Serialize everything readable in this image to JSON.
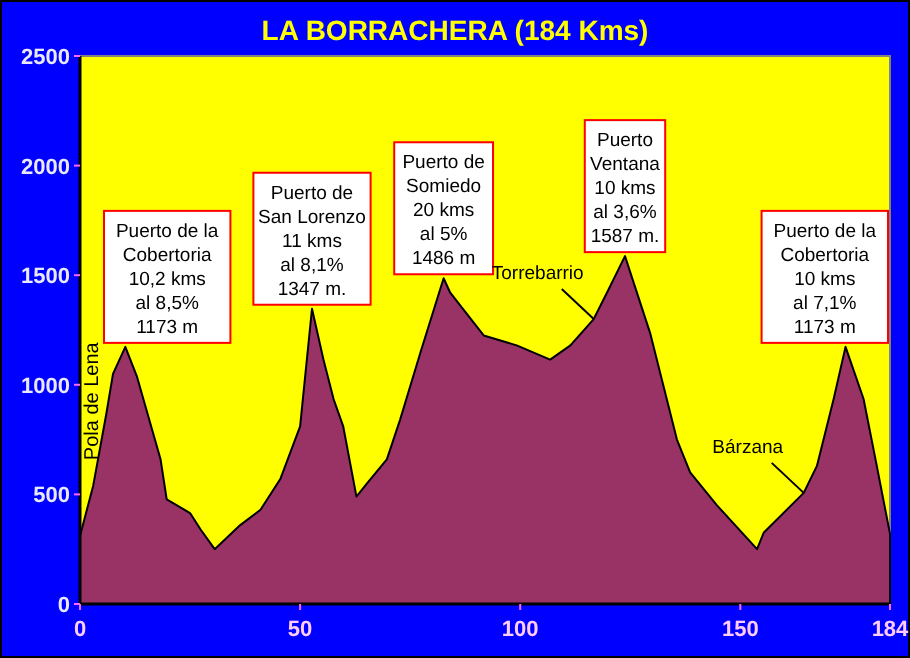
{
  "chart_data": {
    "type": "area",
    "title": "LA BORRACHERA (184 Kms)",
    "x": [
      0,
      3,
      6,
      7.5,
      10.3,
      12.9,
      18.3,
      19.7,
      25,
      27.4,
      30.6,
      36.4,
      41,
      45.5,
      50,
      52.7,
      55.3,
      57.6,
      59.8,
      62.8,
      65.2,
      69.7,
      72.7,
      77.3,
      82.6,
      84.1,
      91.7,
      99.2,
      106.8,
      111.4,
      116.7,
      119.7,
      123.8,
      129.5,
      135.6,
      138.6,
      144.7,
      153.8,
      155.3,
      164.4,
      167.4,
      171.2,
      173.9,
      178,
      181,
      184
    ],
    "series": [
      {
        "color": "#993366",
        "values": [
          310,
          540,
          870,
          1050,
          1173,
          1040,
          660,
          477,
          415,
          340,
          250,
          360,
          430,
          570,
          810,
          1347,
          1115,
          935,
          810,
          490,
          550,
          660,
          840,
          1145,
          1486,
          1420,
          1225,
          1180,
          1115,
          1180,
          1300,
          1420,
          1587,
          1237,
          750,
          600,
          450,
          250,
          325,
          507,
          630,
          935,
          1173,
          935,
          630,
          320
        ]
      }
    ],
    "xlim": [
      0,
      184
    ],
    "ylim": [
      0,
      2500
    ],
    "xticks": [
      0,
      50,
      100,
      150,
      184
    ],
    "yticks": [
      0,
      500,
      1000,
      1500,
      2000,
      2500
    ],
    "grid": false,
    "annotations": [
      {
        "text": "Puerto de la\nCobertoria\n10,2 kms\nal 8,5%\n1173 m",
        "x": 10.3,
        "y": 1173
      },
      {
        "text": "Puerto de\nSan Lorenzo\n11 kms\nal 8,1%\n1347 m.",
        "x": 52.7,
        "y": 1347
      },
      {
        "text": "Puerto de\nSomiedo\n20 kms\nal 5%\n1486 m",
        "x": 82.6,
        "y": 1486
      },
      {
        "text": "Puerto\nVentana\n10 kms\nal 3,6%\n1587 m.",
        "x": 123.8,
        "y": 1587
      },
      {
        "text": "Puerto de la\nCobertoria\n10 kms\nal 7,1%\n1173 m",
        "x": 173.9,
        "y": 1173
      },
      {
        "text": "Torrebarrio",
        "x": 116.7,
        "y": 1300
      },
      {
        "text": "Bárzana",
        "x": 164.4,
        "y": 507
      },
      "Pola de Lena"
    ]
  }
}
